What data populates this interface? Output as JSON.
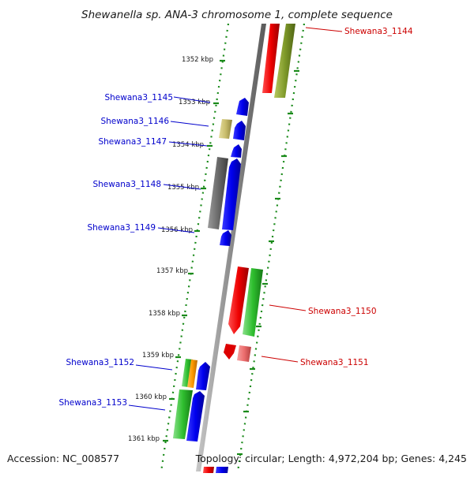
{
  "title": "Shewanella sp. ANA-3 chromosome 1, complete sequence",
  "accession": "Accession: NC_008577",
  "summary": "Topology: circular; Length: 4,972,204 bp; Genes: 4,245",
  "colors": {
    "backbone": "#8c8c8c",
    "ruler_dots": "#1a8a1a",
    "label_left": "#0000cc",
    "label_right": "#cc0000"
  },
  "scale_ticks": [
    {
      "label": "1352 kbp"
    },
    {
      "label": "1353 kbp"
    },
    {
      "label": "1354 kbp"
    },
    {
      "label": "1355 kbp"
    },
    {
      "label": "1356 kbp"
    },
    {
      "label": "1357 kbp"
    },
    {
      "label": "1358 kbp"
    },
    {
      "label": "1359 kbp"
    },
    {
      "label": "1360 kbp"
    },
    {
      "label": "1361 kbp"
    }
  ],
  "gene_labels": [
    {
      "name": "Shewana3_1144",
      "side": "right"
    },
    {
      "name": "Shewana3_1145",
      "side": "left"
    },
    {
      "name": "Shewana3_1146",
      "side": "left"
    },
    {
      "name": "Shewana3_1147",
      "side": "left"
    },
    {
      "name": "Shewana3_1148",
      "side": "left"
    },
    {
      "name": "Shewana3_1149",
      "side": "left"
    },
    {
      "name": "Shewana3_1150",
      "side": "right"
    },
    {
      "name": "Shewana3_1151",
      "side": "right"
    },
    {
      "name": "Shewana3_1152",
      "side": "left"
    },
    {
      "name": "Shewana3_1153",
      "side": "left"
    }
  ]
}
